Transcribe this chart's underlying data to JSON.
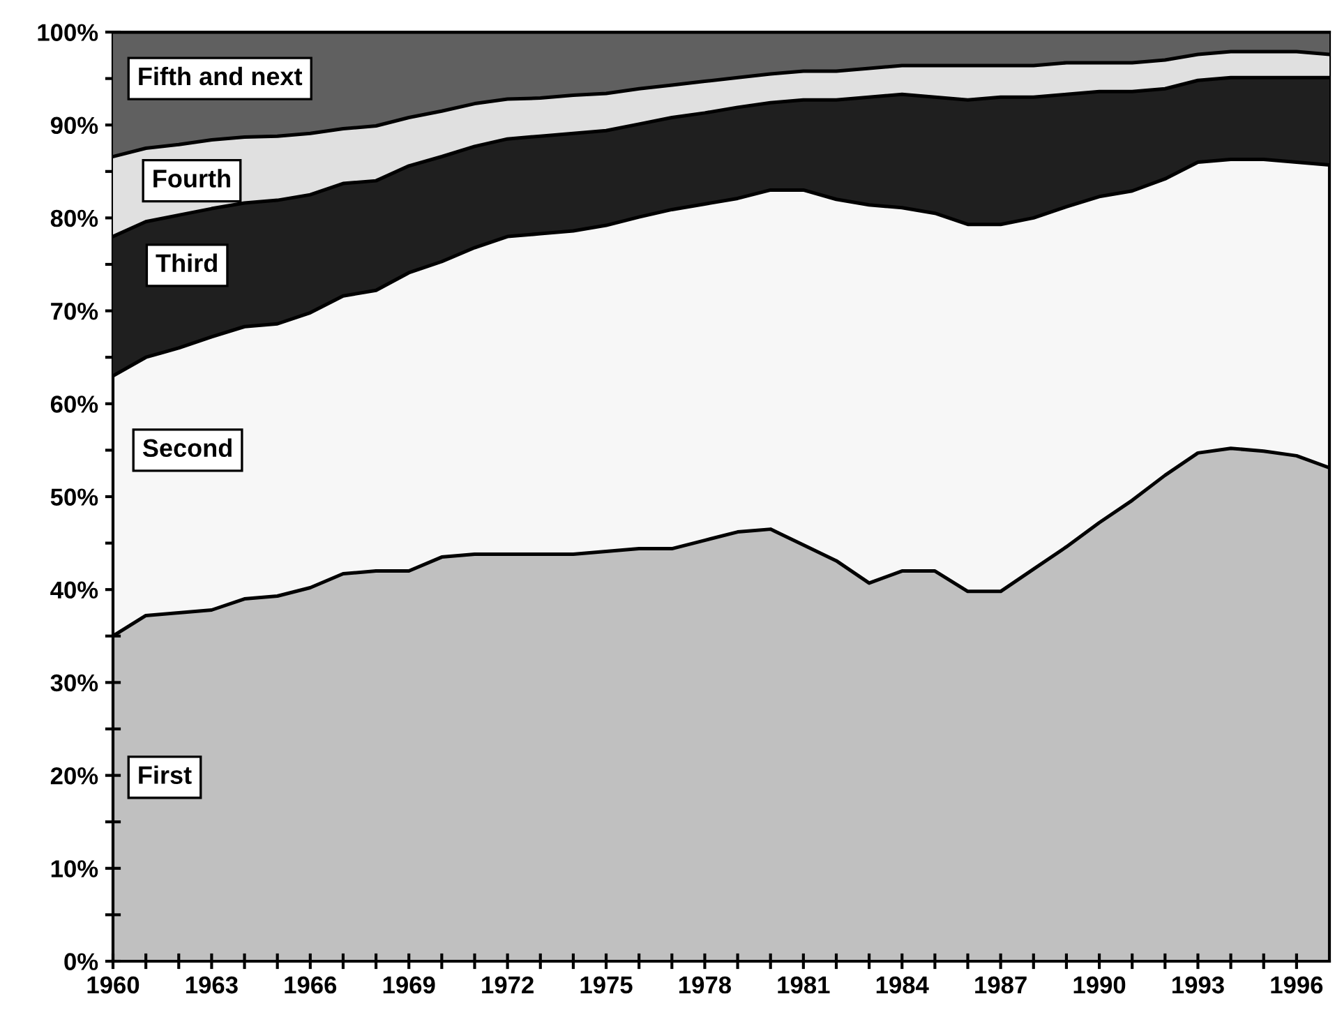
{
  "chart_data": {
    "type": "area",
    "stacked": true,
    "legend": false,
    "grid": false,
    "marker": "none",
    "x": [
      1960,
      1961,
      1962,
      1963,
      1964,
      1965,
      1966,
      1967,
      1968,
      1969,
      1970,
      1971,
      1972,
      1973,
      1974,
      1975,
      1976,
      1977,
      1978,
      1979,
      1980,
      1981,
      1982,
      1983,
      1984,
      1985,
      1986,
      1987,
      1988,
      1989,
      1990,
      1991,
      1992,
      1993,
      1994,
      1995,
      1996,
      1997
    ],
    "series": [
      {
        "name": "First",
        "color": "#c0c0c0",
        "values": [
          35,
          37.2,
          37.5,
          37.8,
          39,
          39.3,
          40.2,
          41.7,
          42,
          42,
          43.5,
          43.8,
          43.8,
          43.8,
          43.8,
          44.1,
          44.4,
          44.4,
          45.3,
          46.2,
          46.5,
          44.8,
          43.1,
          40.7,
          42,
          42,
          39.8,
          39.8,
          42.2,
          44.6,
          47.2,
          49.6,
          52.3,
          54.7,
          55.2,
          54.9,
          54.4,
          53.1
        ]
      },
      {
        "name": "Second",
        "color": "#f7f7f7",
        "values": [
          28,
          27.8,
          28.5,
          29.4,
          29.3,
          29.3,
          29.6,
          29.9,
          30.2,
          32.1,
          31.8,
          33,
          34.2,
          34.5,
          34.8,
          35.1,
          35.7,
          36.5,
          36.2,
          35.9,
          36.5,
          38.2,
          38.9,
          40.7,
          39.1,
          38.5,
          39.5,
          39.5,
          37.8,
          36.6,
          35.1,
          33.3,
          31.9,
          31.3,
          31.1,
          31.4,
          31.6,
          32.6
        ]
      },
      {
        "name": "Third",
        "color": "#1f1f1f",
        "values": [
          15,
          14.6,
          14.3,
          13.8,
          13.3,
          13.3,
          12.7,
          12.1,
          11.8,
          11.5,
          11.3,
          10.9,
          10.5,
          10.5,
          10.5,
          10.2,
          10,
          9.9,
          9.8,
          9.8,
          9.4,
          9.7,
          10.7,
          11.6,
          12.2,
          12.5,
          13.4,
          13.7,
          13,
          12.1,
          11.3,
          10.7,
          9.7,
          8.8,
          8.8,
          8.8,
          9.1,
          9.4
        ]
      },
      {
        "name": "Fourth",
        "color": "#e0e0e0",
        "values": [
          8.6,
          7.9,
          7.6,
          7.4,
          7.1,
          6.9,
          6.6,
          5.9,
          5.9,
          5.2,
          4.9,
          4.6,
          4.3,
          4.1,
          4.1,
          4,
          3.8,
          3.5,
          3.4,
          3.2,
          3.1,
          3.1,
          3.1,
          3.1,
          3.1,
          3.4,
          3.7,
          3.4,
          3.4,
          3.4,
          3.1,
          3.1,
          3.1,
          2.8,
          2.8,
          2.8,
          2.8,
          2.5
        ]
      },
      {
        "name": "Fifth and next",
        "color": "#606060",
        "values": [
          13.4,
          12.5,
          12.1,
          11.6,
          11.3,
          11.2,
          10.9,
          10.4,
          10.1,
          9.2,
          8.5,
          7.7,
          7.2,
          7.1,
          6.8,
          6.6,
          6.1,
          5.7,
          5.3,
          4.9,
          4.5,
          4.2,
          4.2,
          3.9,
          3.6,
          3.6,
          3.6,
          3.6,
          3.6,
          3.3,
          3.3,
          3.3,
          3,
          2.4,
          2.1,
          2.1,
          2.1,
          2.4
        ]
      }
    ],
    "xlim": [
      1960,
      1997
    ],
    "xticks": [
      1960,
      {
        "value": 1961,
        "label": null
      },
      {
        "value": 1962,
        "label": null
      },
      1963,
      {
        "value": 1964,
        "label": null
      },
      {
        "value": 1965,
        "label": null
      },
      1966,
      {
        "value": 1967,
        "label": null
      },
      {
        "value": 1968,
        "label": null
      },
      1969,
      {
        "value": 1970,
        "label": null
      },
      {
        "value": 1971,
        "label": null
      },
      1972,
      {
        "value": 1973,
        "label": null
      },
      {
        "value": 1974,
        "label": null
      },
      1975,
      {
        "value": 1976,
        "label": null
      },
      {
        "value": 1977,
        "label": null
      },
      1978,
      {
        "value": 1979,
        "label": null
      },
      {
        "value": 1980,
        "label": null
      },
      1981,
      {
        "value": 1982,
        "label": null
      },
      {
        "value": 1983,
        "label": null
      },
      1984,
      {
        "value": 1985,
        "label": null
      },
      {
        "value": 1986,
        "label": null
      },
      1987,
      {
        "value": 1988,
        "label": null
      },
      {
        "value": 1989,
        "label": null
      },
      1990,
      {
        "value": 1991,
        "label": null
      },
      {
        "value": 1992,
        "label": null
      },
      1993,
      {
        "value": 1994,
        "label": null
      },
      {
        "value": 1995,
        "label": null
      },
      1996
    ],
    "ylim": [
      0,
      100
    ],
    "yticks": [
      {
        "value": 0,
        "label": "0%"
      },
      {
        "value": 5,
        "label": null
      },
      {
        "value": 10,
        "label": "10%"
      },
      {
        "value": 15,
        "label": null
      },
      {
        "value": 20,
        "label": "20%"
      },
      {
        "value": 25,
        "label": null
      },
      {
        "value": 30,
        "label": "30%"
      },
      {
        "value": 35,
        "label": null
      },
      {
        "value": 40,
        "label": "40%"
      },
      {
        "value": 45,
        "label": null
      },
      {
        "value": 50,
        "label": "50%"
      },
      {
        "value": 55,
        "label": null
      },
      {
        "value": 60,
        "label": "60%"
      },
      {
        "value": 65,
        "label": null
      },
      {
        "value": 70,
        "label": "70%"
      },
      {
        "value": 75,
        "label": null
      },
      {
        "value": 80,
        "label": "80%"
      },
      {
        "value": 85,
        "label": null
      },
      {
        "value": 90,
        "label": "90%"
      },
      {
        "value": 95,
        "label": null
      },
      {
        "value": 100,
        "label": "100%"
      }
    ]
  }
}
